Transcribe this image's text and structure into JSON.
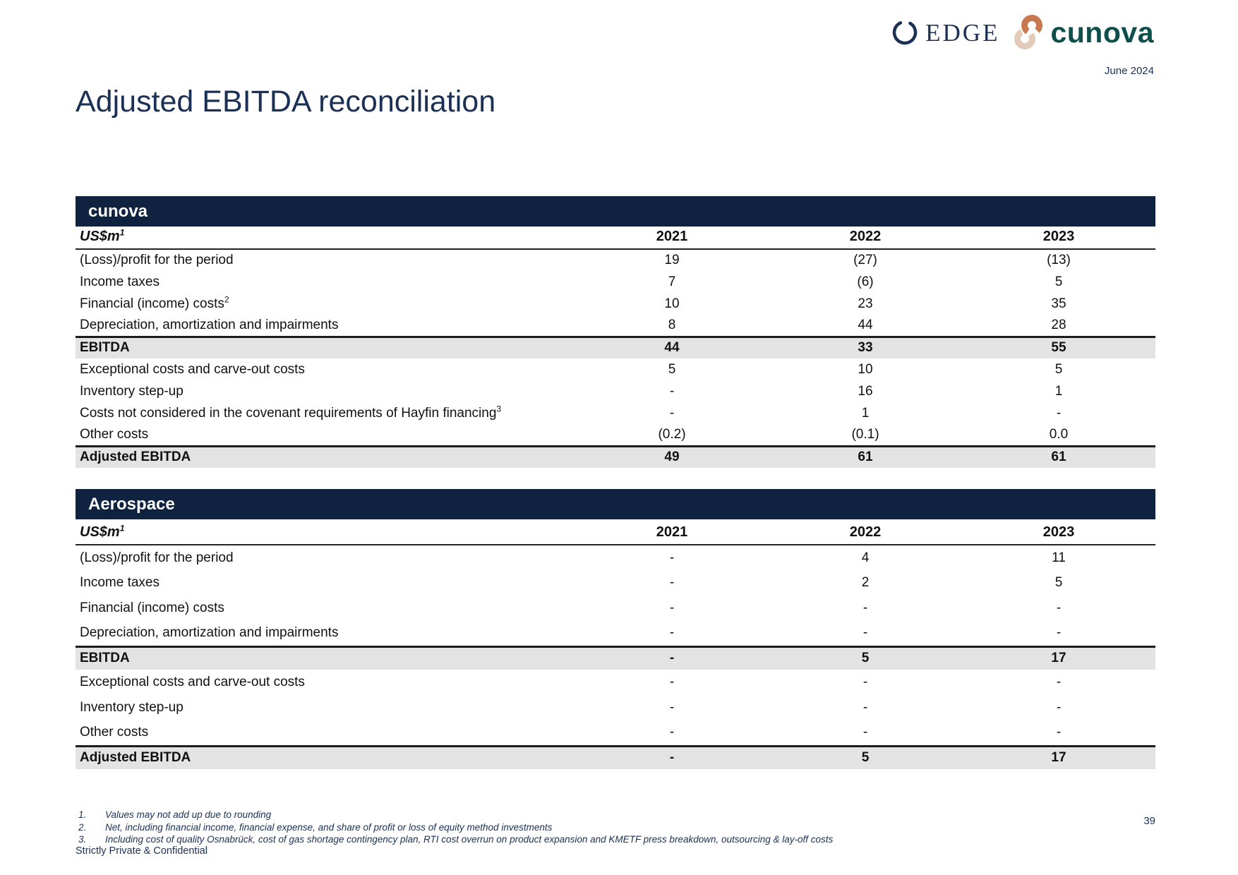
{
  "header": {
    "edge_logo": "EDGE",
    "cunova_logo": "cunova",
    "date": "June 2024"
  },
  "title": "Adjusted EBITDA reconciliation",
  "tables": [
    {
      "band_title": "cunova",
      "unit_label": "US$m",
      "unit_sup": "1",
      "columns": [
        "2021",
        "2022",
        "2023"
      ],
      "rows": [
        {
          "label": "(Loss)/profit for the period",
          "values": [
            "19",
            "(27)",
            "(13)"
          ],
          "total": false
        },
        {
          "label": "Income taxes",
          "values": [
            "7",
            "(6)",
            "5"
          ],
          "total": false
        },
        {
          "label": "Financial (income) costs",
          "sup": "2",
          "values": [
            "10",
            "23",
            "35"
          ],
          "total": false
        },
        {
          "label": "Depreciation, amortization and impairments",
          "values": [
            "8",
            "44",
            "28"
          ],
          "total": false
        },
        {
          "label": "EBITDA",
          "values": [
            "44",
            "33",
            "55"
          ],
          "total": true
        },
        {
          "label": "Exceptional costs and carve-out costs",
          "values": [
            "5",
            "10",
            "5"
          ],
          "total": false
        },
        {
          "label": "Inventory step-up",
          "values": [
            "-",
            "16",
            "1"
          ],
          "total": false
        },
        {
          "label": "Costs not considered in the covenant requirements of Hayfin financing",
          "sup": "3",
          "values": [
            "-",
            "1",
            "-"
          ],
          "total": false
        },
        {
          "label": "Other costs",
          "values": [
            "(0.2)",
            "(0.1)",
            "0.0"
          ],
          "total": false
        },
        {
          "label": "Adjusted EBITDA",
          "values": [
            "49",
            "61",
            "61"
          ],
          "total": true
        }
      ]
    },
    {
      "band_title": "Aerospace",
      "unit_label": "US$m",
      "unit_sup": "1",
      "columns": [
        "2021",
        "2022",
        "2023"
      ],
      "rows": [
        {
          "label": "(Loss)/profit for the period",
          "values": [
            "-",
            "4",
            "11"
          ],
          "total": false
        },
        {
          "label": "Income taxes",
          "values": [
            "-",
            "2",
            "5"
          ],
          "total": false
        },
        {
          "label": "Financial (income) costs",
          "values": [
            "-",
            "-",
            "-"
          ],
          "total": false
        },
        {
          "label": "Depreciation, amortization and impairments",
          "values": [
            "-",
            "-",
            "-"
          ],
          "total": false
        },
        {
          "label": "EBITDA",
          "values": [
            "-",
            "5",
            "17"
          ],
          "total": true
        },
        {
          "label": "Exceptional costs and carve-out costs",
          "values": [
            "-",
            "-",
            "-"
          ],
          "total": false
        },
        {
          "label": "Inventory step-up",
          "values": [
            "-",
            "-",
            "-"
          ],
          "total": false
        },
        {
          "label": "Other costs",
          "values": [
            "-",
            "-",
            "-"
          ],
          "total": false
        },
        {
          "label": "Adjusted EBITDA",
          "values": [
            "-",
            "5",
            "17"
          ],
          "total": true
        }
      ]
    }
  ],
  "footnotes": [
    {
      "num": "1.",
      "text": "Values may not add up due to rounding"
    },
    {
      "num": "2.",
      "text": "Net, including financial income, financial expense, and share of profit or loss of equity method investments"
    },
    {
      "num": "3.",
      "text": "Including cost of quality Osnabrück, cost of gas shortage contingency plan, RTI cost overrun on product expansion and KMETF press breakdown, outsourcing & lay-off costs"
    }
  ],
  "footer": {
    "confidential": "Strictly Private & Confidential",
    "page_number": "39"
  },
  "colors": {
    "band_navy": "#0f2341",
    "text_navy": "#1a3055",
    "total_row_gray": "#e3e3e3",
    "edge_navy": "#1b3054",
    "cunova_teal": "#0e4f4b",
    "knot_copper": "#c8794f",
    "knot_beige": "#e2cbb8"
  }
}
